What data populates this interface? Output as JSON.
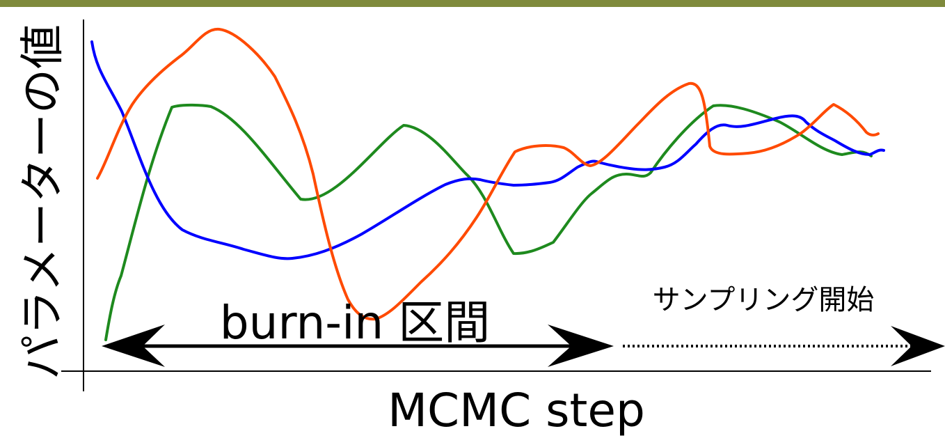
{
  "labels": {
    "y_axis": "パラメーターの値",
    "x_axis": "MCMC step",
    "burn_in": "burn-in 区間",
    "sampling": "サンプリング開始"
  },
  "colors": {
    "top_rule": "#7f8a3c",
    "chain_blue": "#0000ff",
    "chain_green": "#1e8a1e",
    "chain_orange": "#ff4a00",
    "axis": "#000000"
  }
}
